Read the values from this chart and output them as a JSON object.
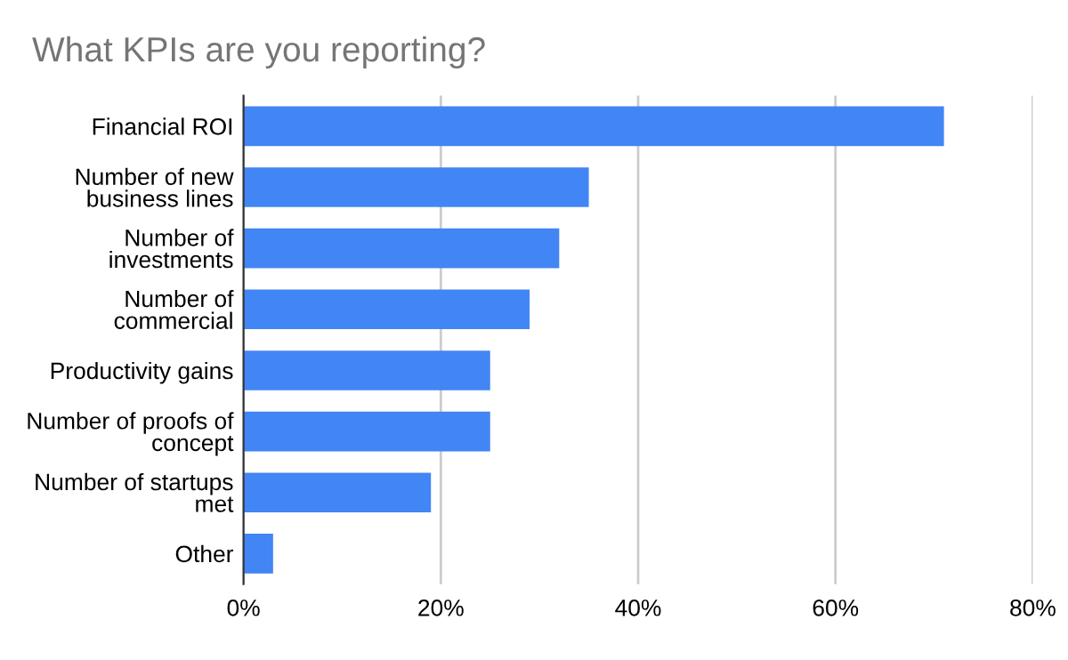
{
  "chart_data": {
    "type": "bar",
    "orientation": "horizontal",
    "title": "What KPIs are you reporting?",
    "categories": [
      "Financial ROI",
      "Number of new\nbusiness lines",
      "Number of\ninvestments",
      "Number of\ncommercial",
      "Productivity gains",
      "Number of proofs of\nconcept",
      "Number of startups\nmet",
      "Other"
    ],
    "values": [
      71,
      35,
      32,
      29,
      25,
      25,
      19,
      3
    ],
    "color": "#4285f4",
    "xlim": [
      0,
      80
    ],
    "xticks": [
      {
        "value": 0,
        "label": "0%"
      },
      {
        "value": 20,
        "label": "20%"
      },
      {
        "value": 40,
        "label": "40%"
      },
      {
        "value": 60,
        "label": "60%"
      },
      {
        "value": 80,
        "label": "80%"
      }
    ],
    "grid": "x",
    "legend": false
  }
}
